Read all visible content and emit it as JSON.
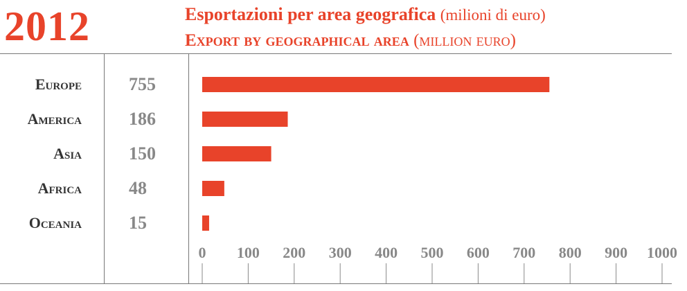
{
  "header": {
    "year": "2012",
    "title_it": "Esportazioni per area geografica",
    "title_it_unit": "(milioni di euro)",
    "title_en": "Export by geographical area",
    "title_en_unit": "(million euro)"
  },
  "colors": {
    "accent": "#e8432a",
    "region_text": "#333333",
    "value_text": "#888888",
    "rule": "#777777"
  },
  "chart_data": {
    "type": "bar",
    "orientation": "horizontal",
    "categories": [
      "Europe",
      "America",
      "Asia",
      "Africa",
      "Oceania"
    ],
    "values": [
      755,
      186,
      150,
      48,
      15
    ],
    "value_labels": [
      "755",
      "186",
      "150",
      "48",
      "15"
    ],
    "xlim": [
      0,
      1000
    ],
    "x_ticks": [
      0,
      100,
      200,
      300,
      400,
      500,
      600,
      700,
      800,
      900,
      1000
    ],
    "x_tick_labels": [
      "0",
      "100",
      "200",
      "300",
      "400",
      "500",
      "600",
      "700",
      "800",
      "900",
      "1000"
    ],
    "grid": false
  }
}
